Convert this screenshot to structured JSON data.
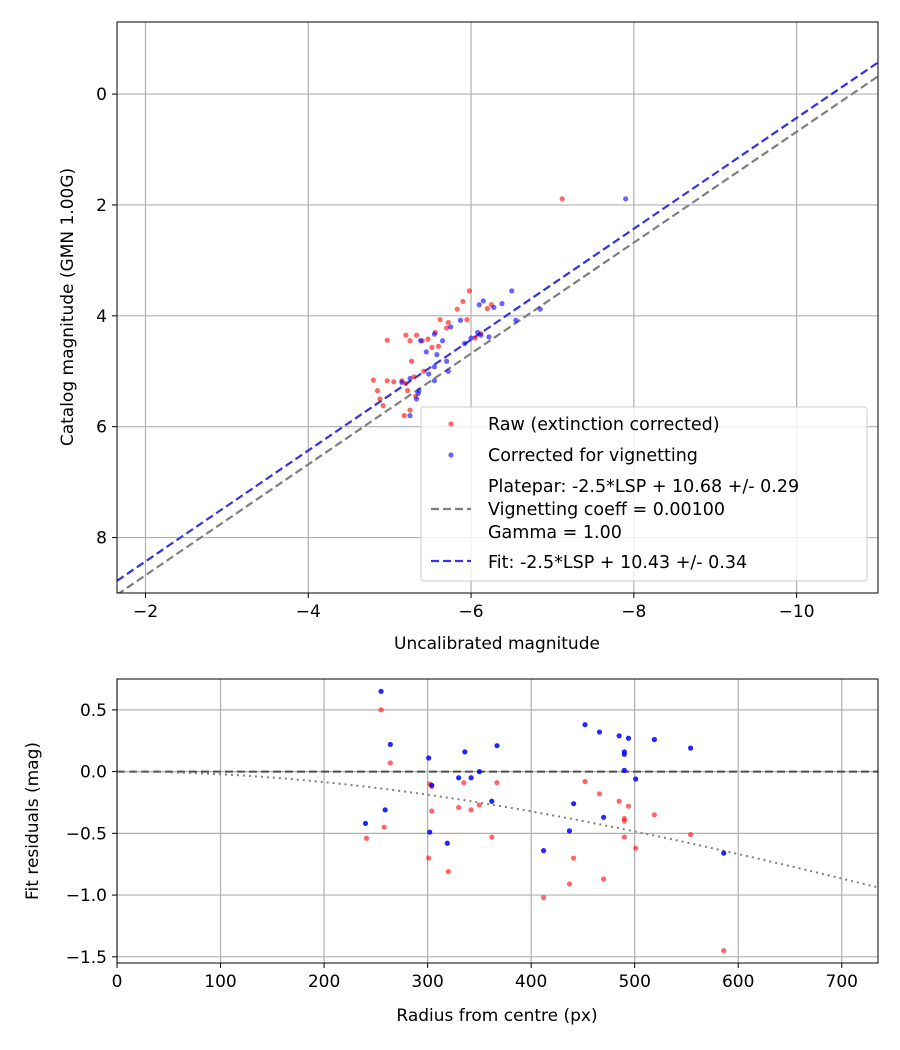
{
  "chart_data": [
    {
      "type": "scatter",
      "xlabel": "Uncalibrated magnitude",
      "ylabel": "Catalog magnitude (GMN 1.00G)",
      "xlim": [
        -1.65,
        -11.0
      ],
      "ylim": [
        9.0,
        -1.3
      ],
      "x_inverted": true,
      "y_inverted": true,
      "grid": true,
      "xticks": [
        -2,
        -4,
        -6,
        -8,
        -10
      ],
      "xtick_labels": [
        "−2",
        "−4",
        "−6",
        "−8",
        "−10"
      ],
      "yticks": [
        0,
        2,
        4,
        6,
        8
      ],
      "ytick_labels": [
        "0",
        "2",
        "4",
        "6",
        "8"
      ],
      "legend_position": "lower-right",
      "legend": [
        {
          "kind": "marker",
          "color": "#ff0000",
          "lines": [
            "Raw (extinction corrected)"
          ]
        },
        {
          "kind": "marker",
          "color": "#0000ff",
          "lines": [
            "Corrected for vignetting"
          ]
        },
        {
          "kind": "dashed",
          "color": "#7f7f7f",
          "lines": [
            "Platepar: -2.5*LSP + 10.68 +/- 0.29",
            "Vignetting coeff = 0.00100",
            "Gamma = 1.00"
          ]
        },
        {
          "kind": "dashed",
          "color": "#3333e6",
          "lines": [
            "Fit: -2.5*LSP + 10.43 +/- 0.34"
          ]
        }
      ],
      "lines": [
        {
          "name": "Platepar",
          "color": "#7f7f7f",
          "slope": 1,
          "intercept": 10.68
        },
        {
          "name": "Fit",
          "color": "#3333e6",
          "slope": 1,
          "intercept": 10.43
        }
      ],
      "series": [
        {
          "name": "Raw (extinction corrected)",
          "color": "#ff0000",
          "points": [
            [
              -7.12,
              1.89
            ],
            [
              -5.98,
              3.55
            ],
            [
              -5.9,
              3.74
            ],
            [
              -5.83,
              3.88
            ],
            [
              -6.25,
              3.8
            ],
            [
              -6.2,
              3.87
            ],
            [
              -5.95,
              4.07
            ],
            [
              -5.72,
              4.12
            ],
            [
              -5.62,
              4.07
            ],
            [
              -5.7,
              4.22
            ],
            [
              -5.56,
              4.3
            ],
            [
              -5.47,
              4.42
            ],
            [
              -5.33,
              4.35
            ],
            [
              -5.6,
              4.55
            ],
            [
              -5.52,
              4.57
            ],
            [
              -5.4,
              4.45
            ],
            [
              -5.25,
              4.45
            ],
            [
              -5.2,
              4.35
            ],
            [
              -4.97,
              4.44
            ],
            [
              -5.27,
              4.82
            ],
            [
              -5.42,
              5.0
            ],
            [
              -5.3,
              5.1
            ],
            [
              -5.15,
              5.17
            ],
            [
              -5.05,
              5.19
            ],
            [
              -4.97,
              5.17
            ],
            [
              -4.8,
              5.16
            ],
            [
              -5.2,
              5.22
            ],
            [
              -4.85,
              5.35
            ],
            [
              -5.22,
              5.35
            ],
            [
              -4.88,
              5.5
            ],
            [
              -5.32,
              5.45
            ],
            [
              -4.92,
              5.62
            ],
            [
              -5.18,
              5.8
            ],
            [
              -5.25,
              5.7
            ],
            [
              -6.12,
              4.32
            ],
            [
              -6.05,
              4.4
            ]
          ]
        },
        {
          "name": "Corrected for vignetting",
          "color": "#0000ff",
          "points": [
            [
              -7.9,
              1.89
            ],
            [
              -6.5,
              3.55
            ],
            [
              -6.38,
              3.78
            ],
            [
              -6.28,
              3.85
            ],
            [
              -6.15,
              3.73
            ],
            [
              -6.1,
              3.8
            ],
            [
              -5.87,
              4.08
            ],
            [
              -5.75,
              4.2
            ],
            [
              -5.55,
              4.33
            ],
            [
              -5.65,
              4.45
            ],
            [
              -5.58,
              4.7
            ],
            [
              -5.45,
              4.65
            ],
            [
              -5.7,
              4.82
            ],
            [
              -5.55,
              4.92
            ],
            [
              -5.72,
              5.0
            ],
            [
              -5.48,
              5.05
            ],
            [
              -5.25,
              5.13
            ],
            [
              -5.15,
              5.2
            ],
            [
              -5.55,
              5.17
            ],
            [
              -5.35,
              5.4
            ],
            [
              -5.33,
              5.5
            ],
            [
              -5.25,
              5.8
            ],
            [
              -6.22,
              4.38
            ],
            [
              -6.08,
              4.3
            ],
            [
              -6.12,
              4.35
            ],
            [
              -6.0,
              4.4
            ],
            [
              -5.92,
              4.5
            ],
            [
              -6.85,
              3.88
            ],
            [
              -6.55,
              4.08
            ],
            [
              -5.38,
              4.45
            ],
            [
              -5.36,
              5.35
            ]
          ]
        }
      ]
    },
    {
      "type": "scatter",
      "xlabel": "Radius from centre (px)",
      "ylabel": "Fit residuals (mag)",
      "xlim": [
        0,
        735
      ],
      "ylim": [
        -1.55,
        0.75
      ],
      "grid": true,
      "xticks": [
        0,
        100,
        200,
        300,
        400,
        500,
        600,
        700
      ],
      "xtick_labels": [
        "0",
        "100",
        "200",
        "300",
        "400",
        "500",
        "600",
        "700"
      ],
      "yticks": [
        0.5,
        0.0,
        -0.5,
        -1.0,
        -1.5
      ],
      "ytick_labels": [
        "0.5",
        "0.0",
        "−0.5",
        "−1.0",
        "−1.5"
      ],
      "zero_line": {
        "y": 0,
        "color": "#4d4d4d"
      },
      "vignetting_curve": {
        "color": "#7f7f7f",
        "coeff": 0.001,
        "gamma": 1.0
      },
      "series": [
        {
          "name": "Raw (extinction corrected)",
          "color": "#ff0000",
          "points": [
            [
              241,
              -0.54
            ],
            [
              255,
              0.5
            ],
            [
              258,
              -0.45
            ],
            [
              264,
              0.07
            ],
            [
              301,
              -0.7
            ],
            [
              302,
              -0.1
            ],
            [
              304,
              -0.12
            ],
            [
              304,
              -0.32
            ],
            [
              320,
              -0.81
            ],
            [
              330,
              -0.29
            ],
            [
              335,
              -0.09
            ],
            [
              342,
              -0.31
            ],
            [
              350,
              -0.27
            ],
            [
              362,
              -0.53
            ],
            [
              367,
              -0.09
            ],
            [
              412,
              -1.02
            ],
            [
              437,
              -0.91
            ],
            [
              441,
              -0.7
            ],
            [
              452,
              -0.08
            ],
            [
              466,
              -0.18
            ],
            [
              470,
              -0.87
            ],
            [
              485,
              -0.24
            ],
            [
              490,
              -0.38
            ],
            [
              490,
              -0.4
            ],
            [
              490,
              -0.53
            ],
            [
              494,
              -0.28
            ],
            [
              501,
              -0.62
            ],
            [
              519,
              -0.35
            ],
            [
              554,
              -0.51
            ],
            [
              586,
              -1.45
            ]
          ]
        },
        {
          "name": "Corrected for vignetting",
          "color": "#0000ff",
          "points": [
            [
              240,
              -0.42
            ],
            [
              255,
              0.65
            ],
            [
              259,
              -0.31
            ],
            [
              264,
              0.22
            ],
            [
              301,
              0.11
            ],
            [
              302,
              -0.49
            ],
            [
              304,
              -0.11
            ],
            [
              319,
              -0.58
            ],
            [
              330,
              -0.05
            ],
            [
              336,
              0.16
            ],
            [
              342,
              -0.05
            ],
            [
              350,
              0.0
            ],
            [
              362,
              -0.24
            ],
            [
              367,
              0.21
            ],
            [
              412,
              -0.64
            ],
            [
              437,
              -0.48
            ],
            [
              441,
              -0.26
            ],
            [
              452,
              0.38
            ],
            [
              466,
              0.32
            ],
            [
              470,
              -0.37
            ],
            [
              485,
              0.29
            ],
            [
              490,
              0.14
            ],
            [
              490,
              0.16
            ],
            [
              490,
              0.01
            ],
            [
              494,
              0.27
            ],
            [
              501,
              -0.06
            ],
            [
              519,
              0.26
            ],
            [
              554,
              0.19
            ],
            [
              586,
              -0.66
            ]
          ]
        }
      ]
    }
  ]
}
